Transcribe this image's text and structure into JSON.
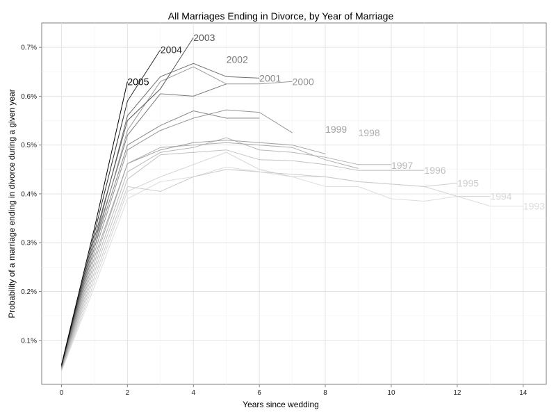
{
  "chart_data": {
    "type": "line",
    "title": "All Marriages Ending in Divorce, by Year of Marriage",
    "xlabel": "Years since wedding",
    "ylabel": "Probability of a marriage ending in divorce during a given year",
    "xlim": [
      -0.6,
      14.7
    ],
    "ylim": [
      0.0001,
      0.0075
    ],
    "x_ticks": [
      0,
      2,
      4,
      6,
      8,
      10,
      12,
      14
    ],
    "x_tick_labels": [
      "0",
      "2",
      "4",
      "6",
      "8",
      "10",
      "12",
      "14"
    ],
    "y_ticks": [
      0.001,
      0.002,
      0.003,
      0.004,
      0.005,
      0.006,
      0.007
    ],
    "y_tick_labels": [
      "0.1%",
      "0.2%",
      "0.3%",
      "0.4%",
      "0.5%",
      "0.6%",
      "0.7%"
    ],
    "grid": true,
    "legend": "none",
    "series": [
      {
        "name": "1993",
        "color": "#dddddd",
        "x": [
          0,
          1,
          2,
          3,
          4,
          5,
          6,
          7,
          8,
          9,
          10,
          11,
          12,
          13,
          14
        ],
        "y": [
          0.00037,
          0.0021,
          0.0039,
          0.00425,
          0.00435,
          0.00455,
          0.00445,
          0.00435,
          0.00415,
          0.00415,
          0.0039,
          0.00385,
          0.00395,
          0.00375,
          0.00375
        ]
      },
      {
        "name": "1994",
        "color": "#d5d5d5",
        "x": [
          0,
          1,
          2,
          3,
          4,
          5,
          6,
          7,
          8,
          9,
          10,
          11,
          12,
          13
        ],
        "y": [
          0.00038,
          0.0022,
          0.00405,
          0.00435,
          0.0046,
          0.00485,
          0.0045,
          0.00435,
          0.00435,
          0.00425,
          0.0042,
          0.00415,
          0.00395,
          0.00395
        ]
      },
      {
        "name": "1995",
        "color": "#cccccc",
        "x": [
          0,
          1,
          2,
          3,
          4,
          5,
          6,
          7,
          8,
          9,
          10,
          11,
          12
        ],
        "y": [
          0.00039,
          0.0023,
          0.00415,
          0.00405,
          0.00435,
          0.0045,
          0.00445,
          0.0044,
          0.00435,
          0.00425,
          0.0042,
          0.00415,
          0.00422
        ]
      },
      {
        "name": "1996",
        "color": "#c2c2c2",
        "x": [
          0,
          1,
          2,
          3,
          4,
          5,
          6,
          7,
          8,
          9,
          10,
          11
        ],
        "y": [
          0.0004,
          0.0024,
          0.0043,
          0.0048,
          0.00485,
          0.0049,
          0.0047,
          0.00468,
          0.0046,
          0.00448,
          0.00448,
          0.00448
        ]
      },
      {
        "name": "1997",
        "color": "#b8b8b8",
        "x": [
          0,
          1,
          2,
          3,
          4,
          5,
          6,
          7,
          8,
          9,
          10
        ],
        "y": [
          0.00041,
          0.0025,
          0.00445,
          0.00485,
          0.00495,
          0.00515,
          0.0049,
          0.00485,
          0.00475,
          0.0046,
          0.0046
        ]
      },
      {
        "name": "1998",
        "color": "#aeaeae",
        "x": [
          0,
          1,
          2,
          3,
          4,
          5,
          6,
          7,
          8,
          9
        ],
        "y": [
          0.00042,
          0.0026,
          0.00462,
          0.00495,
          0.005,
          0.00505,
          0.005,
          0.00495,
          0.0047,
          0.00452
        ]
      },
      {
        "name": "1999",
        "color": "#a2a2a2",
        "x": [
          0,
          1,
          2,
          3,
          4,
          5,
          6,
          7,
          8
        ],
        "y": [
          0.00043,
          0.0027,
          0.00462,
          0.0049,
          0.00505,
          0.0051,
          0.00505,
          0.005,
          0.00482
        ]
      },
      {
        "name": "2000",
        "color": "#959595",
        "x": [
          0,
          1,
          2,
          3,
          4,
          5,
          6,
          7
        ],
        "y": [
          0.00044,
          0.0028,
          0.0049,
          0.0053,
          0.00555,
          0.00572,
          0.00567,
          0.00525
        ]
      },
      {
        "name": "2001",
        "color": "#888888",
        "x": [
          0,
          1,
          2,
          3,
          4,
          5,
          6
        ],
        "y": [
          0.00045,
          0.0029,
          0.005,
          0.0054,
          0.0057,
          0.00555,
          0.00555
        ]
      },
      {
        "name": "2002",
        "color": "#7a7a7a",
        "x": [
          0,
          1,
          2,
          3,
          4,
          5
        ],
        "y": [
          0.00046,
          0.003,
          0.0052,
          0.00605,
          0.006,
          0.00625
        ]
      },
      {
        "name": "2003",
        "color": "#555555",
        "x": [
          0,
          1,
          2,
          3,
          4
        ],
        "y": [
          0.00047,
          0.0031,
          0.0055,
          0.00615,
          0.0072
        ]
      },
      {
        "name": "2004",
        "color": "#2a2a2a",
        "x": [
          0,
          1,
          2,
          3
        ],
        "y": [
          0.00048,
          0.0032,
          0.0059,
          0.00695
        ]
      },
      {
        "name": "2005",
        "color": "#000000",
        "x": [
          0,
          1,
          2
        ],
        "y": [
          0.0005,
          0.0033,
          0.0063
        ]
      }
    ],
    "extra_lines": [
      {
        "color": "#9a9a9a",
        "x": [
          0,
          1,
          2,
          3,
          4,
          5,
          6,
          7
        ],
        "y": [
          0.00045,
          0.0029,
          0.0053,
          0.0063,
          0.0066,
          0.00625,
          0.00625,
          0.0063
        ]
      },
      {
        "color": "#6e6e6e",
        "x": [
          0,
          1,
          2,
          3,
          4,
          5,
          6
        ],
        "y": [
          0.00046,
          0.003,
          0.0056,
          0.0064,
          0.00667,
          0.0064,
          0.00637
        ]
      }
    ],
    "labels": [
      {
        "text": "2005",
        "x": 2,
        "y": 0.0063,
        "color": "#000000"
      },
      {
        "text": "2004",
        "x": 3,
        "y": 0.00695,
        "color": "#2a2a2a"
      },
      {
        "text": "2003",
        "x": 4,
        "y": 0.0072,
        "color": "#555555"
      },
      {
        "text": "2002",
        "x": 5,
        "y": 0.00675,
        "color": "#7a7a7a"
      },
      {
        "text": "2001",
        "x": 6,
        "y": 0.00637,
        "color": "#888888"
      },
      {
        "text": "2000",
        "x": 7,
        "y": 0.0063,
        "color": "#959595"
      },
      {
        "text": "1999",
        "x": 8,
        "y": 0.00532,
        "color": "#a2a2a2"
      },
      {
        "text": "1998",
        "x": 9,
        "y": 0.00525,
        "color": "#aeaeae"
      },
      {
        "text": "1997",
        "x": 10,
        "y": 0.00458,
        "color": "#b8b8b8"
      },
      {
        "text": "1996",
        "x": 11,
        "y": 0.00448,
        "color": "#c2c2c2"
      },
      {
        "text": "1995",
        "x": 12,
        "y": 0.00422,
        "color": "#cccccc"
      },
      {
        "text": "1994",
        "x": 13,
        "y": 0.00395,
        "color": "#d5d5d5"
      },
      {
        "text": "1993",
        "x": 14,
        "y": 0.00375,
        "color": "#dddddd"
      }
    ]
  }
}
